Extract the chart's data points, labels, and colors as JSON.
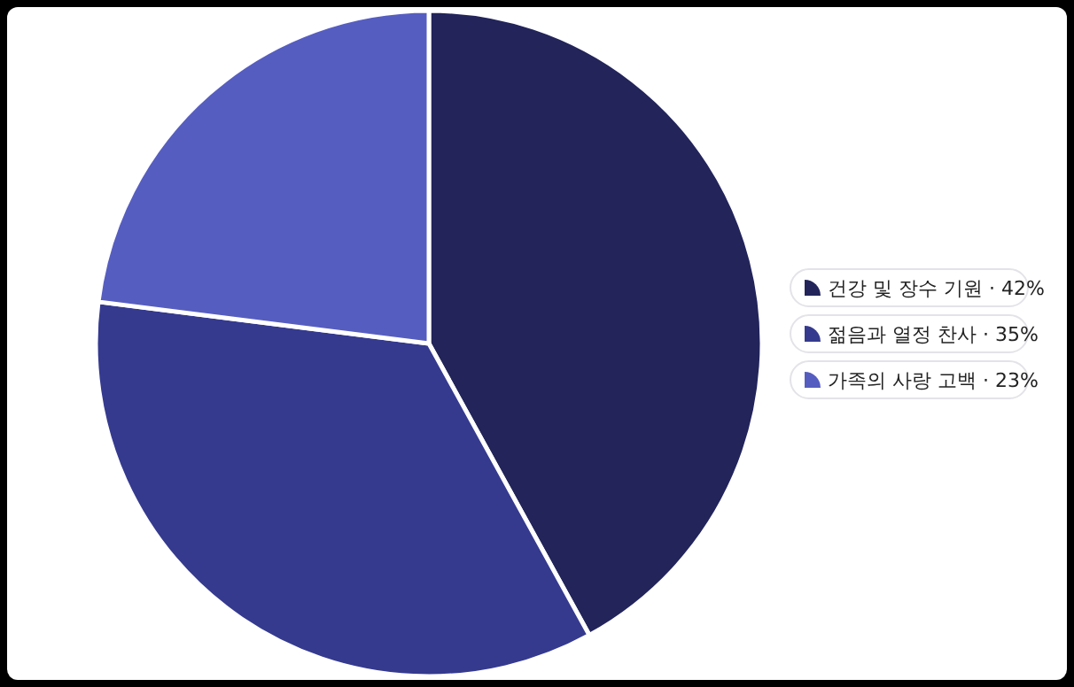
{
  "chart_data": {
    "type": "pie",
    "categories": [
      "건강 및 장수 기원 · 42%",
      "젊음과 열정 찬사 · 35%",
      "가족의 사랑 고백 · 23%"
    ],
    "values": [
      42,
      35,
      23
    ],
    "colors": [
      "#22245a",
      "#353a8f",
      "#565dc0"
    ],
    "legend": "right"
  }
}
